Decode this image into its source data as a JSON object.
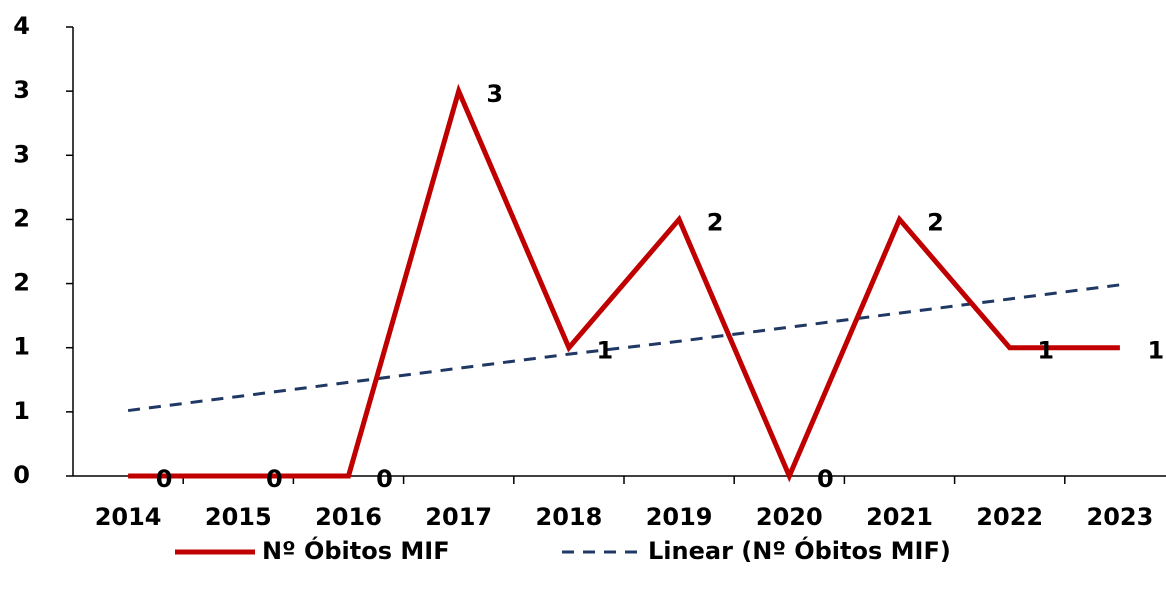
{
  "chart_data": {
    "type": "line",
    "categories": [
      "2014",
      "2015",
      "2016",
      "2017",
      "2018",
      "2019",
      "2020",
      "2021",
      "2022",
      "2023"
    ],
    "series": [
      {
        "name": "Nº Óbitos MIF",
        "color": "#c00000",
        "values": [
          0,
          0,
          0,
          3,
          1,
          2,
          0,
          2,
          1,
          1
        ],
        "data_labels": true
      },
      {
        "name": "Linear (Nº Óbitos MIF)",
        "color": "#1f3864",
        "dashed": true,
        "values": [
          0.51,
          0.62,
          0.73,
          0.84,
          0.95,
          1.05,
          1.16,
          1.27,
          1.38,
          1.49
        ]
      }
    ],
    "ylim": [
      0,
      3.5
    ],
    "yticks": [
      0,
      {
        "value": 0.5,
        "label": "1"
      },
      1,
      {
        "value": 1.5,
        "label": "2"
      },
      2,
      {
        "value": 2.5,
        "label": "3"
      },
      3,
      {
        "value": 3.5,
        "label": "4"
      }
    ],
    "legend": "bottom"
  }
}
